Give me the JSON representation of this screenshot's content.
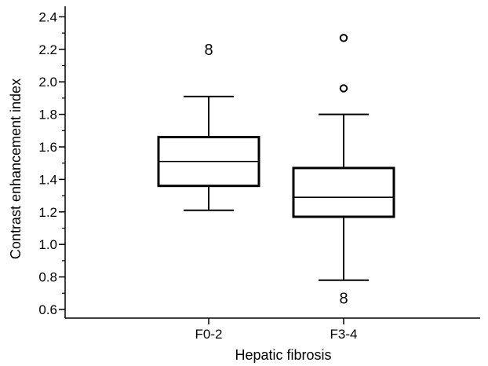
{
  "chart_data": {
    "type": "box",
    "xlabel": "Hepatic fibrosis",
    "ylabel": "Contrast enhancement index",
    "ylim": [
      0.55,
      2.45
    ],
    "yticks": [
      0.6,
      0.8,
      1.0,
      1.2,
      1.4,
      1.6,
      1.8,
      2.0,
      2.2,
      2.4
    ],
    "ytick_labels": [
      "0.6",
      "0.8",
      "1.0",
      "1.2",
      "1.4",
      "1.6",
      "1.8",
      "2.0",
      "2.2",
      "2.4"
    ],
    "categories": [
      "F0-2",
      "F3-4"
    ],
    "boxes": [
      {
        "category": "F0-2",
        "whisker_low": 1.21,
        "q1": 1.36,
        "median": 1.51,
        "q3": 1.66,
        "whisker_high": 1.91,
        "outliers": [
          {
            "value": 2.2,
            "marker": "8",
            "label": "8"
          }
        ]
      },
      {
        "category": "F3-4",
        "whisker_low": 0.78,
        "q1": 1.17,
        "median": 1.29,
        "q3": 1.47,
        "whisker_high": 1.8,
        "outliers": [
          {
            "value": 2.27,
            "marker": "circle"
          },
          {
            "value": 1.96,
            "marker": "circle"
          },
          {
            "value": 0.67,
            "marker": "8",
            "label": "8"
          }
        ]
      }
    ],
    "grid": false,
    "legend": "none"
  }
}
